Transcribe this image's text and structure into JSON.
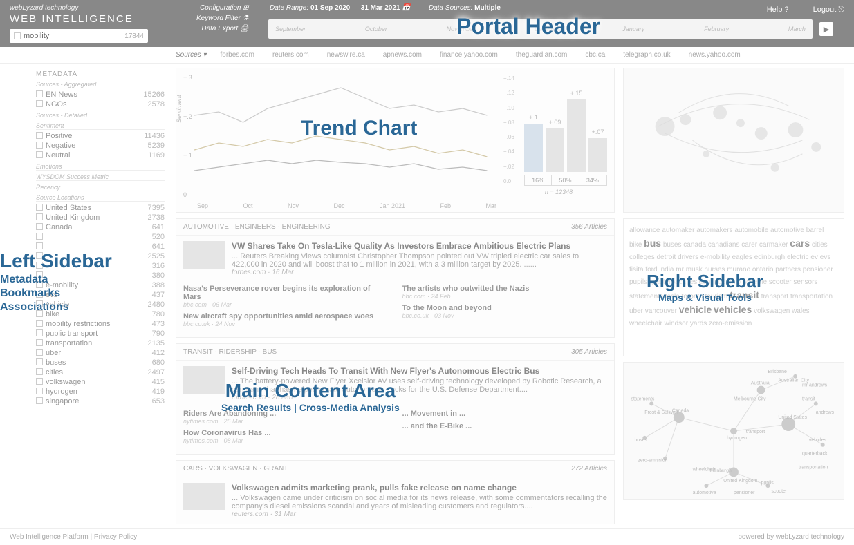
{
  "header": {
    "tagline": "webLyzard technology",
    "brand": "WEB INTELLIGENCE",
    "search_value": "mobility",
    "search_count": "17844",
    "config": "Configuration",
    "keyword_filter": "Keyword Filter",
    "data_export": "Data Export",
    "date_label": "Date Range:",
    "date_value": "01 Sep 2020 — 31 Mar 2021",
    "sources_label": "Data Sources:",
    "sources_value": "Multiple",
    "help": "Help",
    "logout": "Logout",
    "timeline_months": [
      "September",
      "October",
      "November",
      "December",
      "January",
      "February",
      "March"
    ],
    "overlay": "Portal Header"
  },
  "sources_bar": {
    "label": "Sources ▾",
    "items": [
      "forbes.com",
      "reuters.com",
      "newswire.ca",
      "apnews.com",
      "finance.yahoo.com",
      "theguardian.com",
      "cbc.ca",
      "telegraph.co.uk",
      "news.yahoo.com"
    ]
  },
  "sidebar_left": {
    "title": "METADATA",
    "sections": [
      {
        "sub": "Sources - Aggregated",
        "rows": [
          {
            "nm": "EN News",
            "ct": "15266"
          },
          {
            "nm": "NGOs",
            "ct": "2578"
          }
        ]
      },
      {
        "sub": "Sources - Detailed",
        "rows": []
      },
      {
        "sub": "Sentiment",
        "rows": [
          {
            "nm": "Positive",
            "ct": "11436"
          },
          {
            "nm": "Negative",
            "ct": "5239"
          },
          {
            "nm": "Neutral",
            "ct": "1169"
          }
        ]
      },
      {
        "sub": "Emotions",
        "rows": []
      },
      {
        "sub": "WYSDOM Success Metric",
        "rows": []
      },
      {
        "sub": "Recency",
        "rows": []
      },
      {
        "sub": "Source Locations",
        "rows": [
          {
            "nm": "United States",
            "ct": "7395"
          },
          {
            "nm": "United Kingdom",
            "ct": "2738"
          },
          {
            "nm": "Canada",
            "ct": "641"
          }
        ]
      }
    ],
    "extra_rows": [
      {
        "nm": "",
        "ct": "520"
      },
      {
        "nm": "",
        "ct": "641"
      },
      {
        "nm": "",
        "ct": "2525"
      },
      {
        "nm": "",
        "ct": "316"
      },
      {
        "nm": "",
        "ct": "380"
      },
      {
        "nm": "e-mobility",
        "ct": "388"
      },
      {
        "nm": "evs",
        "ct": "437"
      },
      {
        "nm": "vehicle",
        "ct": "2480"
      },
      {
        "nm": "bike",
        "ct": "780"
      },
      {
        "nm": "mobility restrictions",
        "ct": "473"
      },
      {
        "nm": "public transport",
        "ct": "790"
      },
      {
        "nm": "transportation",
        "ct": "2135"
      },
      {
        "nm": "uber",
        "ct": "412"
      },
      {
        "nm": "buses",
        "ct": "680"
      },
      {
        "nm": "cities",
        "ct": "2497"
      },
      {
        "nm": "volkswagen",
        "ct": "415"
      },
      {
        "nm": "hydrogen",
        "ct": "419"
      },
      {
        "nm": "singapore",
        "ct": "653"
      }
    ],
    "overlay_big": "Left Sidebar",
    "overlay_subs": [
      "Metadata",
      "Bookmarks",
      "Associations"
    ]
  },
  "trend": {
    "overlay": "Trend Chart",
    "y_ticks": [
      "+.3",
      "+.2",
      "+.1",
      "0"
    ],
    "x_ticks": [
      "Sep",
      "Oct",
      "Nov",
      "Dec",
      "Jan 2021",
      "Feb",
      "Mar"
    ],
    "sentiment_label": "Sentiment",
    "lines": [
      {
        "color": "#cccccc",
        "points": [
          [
            0,
            60
          ],
          [
            30,
            55
          ],
          [
            60,
            70
          ],
          [
            90,
            50
          ],
          [
            120,
            40
          ],
          [
            150,
            30
          ],
          [
            180,
            20
          ],
          [
            210,
            35
          ],
          [
            240,
            50
          ],
          [
            270,
            45
          ],
          [
            300,
            55
          ],
          [
            330,
            50
          ],
          [
            360,
            60
          ]
        ]
      },
      {
        "color": "#d4c9a8",
        "points": [
          [
            0,
            110
          ],
          [
            30,
            100
          ],
          [
            60,
            105
          ],
          [
            90,
            95
          ],
          [
            120,
            100
          ],
          [
            150,
            90
          ],
          [
            180,
            95
          ],
          [
            210,
            100
          ],
          [
            240,
            110
          ],
          [
            270,
            105
          ],
          [
            300,
            115
          ],
          [
            330,
            110
          ],
          [
            360,
            120
          ]
        ]
      },
      {
        "color": "#bbbbbb",
        "points": [
          [
            0,
            140
          ],
          [
            30,
            135
          ],
          [
            60,
            130
          ],
          [
            90,
            125
          ],
          [
            120,
            130
          ],
          [
            150,
            125
          ],
          [
            180,
            128
          ],
          [
            210,
            130
          ],
          [
            240,
            135
          ],
          [
            270,
            130
          ],
          [
            300,
            138
          ],
          [
            330,
            135
          ],
          [
            360,
            140
          ]
        ]
      }
    ],
    "bar_y": [
      "+.14",
      "+.12",
      "+.10",
      "+.08",
      "+.06",
      "+.04",
      "+.02",
      "0.0"
    ],
    "bars": [
      {
        "v": "+.1",
        "h": 70,
        "color": "#d8e2ec"
      },
      {
        "v": "+.09",
        "h": 63,
        "color": "#e5e5e5"
      },
      {
        "v": "+.15",
        "h": 105,
        "color": "#e5e5e5"
      },
      {
        "v": "+.07",
        "h": 49,
        "color": "#e5e5e5"
      }
    ],
    "bar_pct": [
      "16%",
      "50%",
      "34%"
    ],
    "n_label": "n = 12348"
  },
  "articles": [
    {
      "tags": "AUTOMOTIVE · ENGINEERS · ENGINEERING",
      "count": "356 Articles",
      "title": "VW Shares Take On Tesla-Like Quality As Investors Embrace Ambitious Electric Plans",
      "desc": "... Reuters Breaking Views columnist Christopher Thompson pointed out VW tripled electric car sales to 422,000 in 2020 and will boost that to 1 million in 2021, with a 3 million target by 2025. ......",
      "src": "forbes.com · 16 Mar",
      "subs": [
        [
          {
            "t": "Nasa's Perseverance rover begins its exploration of Mars",
            "s": "bbc.com · 06 Mar"
          },
          {
            "t": "New aircraft spy opportunities amid aerospace woes",
            "s": "bbc.co.uk · 24 Nov"
          }
        ],
        [
          {
            "t": "The artists who outwitted the Nazis",
            "s": "bbc.com · 24 Feb"
          },
          {
            "t": "To the Moon and beyond",
            "s": "bbc.co.uk · 03 Nov"
          }
        ]
      ]
    },
    {
      "tags": "TRANSIT · RIDERSHIP · BUS",
      "count": "305 Articles",
      "title": "Self-Driving Tech Heads To Transit With New Flyer's Autonomous Electric Bus",
      "desc": "... The battery-powered New Flyer Xcelsior AV uses self-driving technology developed by Robotic Research, a company that has helped create autonomous trucks for the U.S. Defense Department....",
      "src": "forbes.com · 28 Jan",
      "subs": [
        [
          {
            "t": "Riders Are Abandoning ...",
            "s": "nytimes.com · 25 Mar"
          },
          {
            "t": "How Coronavirus Has ...",
            "s": "nytimes.com · 08 Mar"
          }
        ],
        [
          {
            "t": "... Movement in ...",
            "s": ""
          },
          {
            "t": "... and the E-Bike ...",
            "s": ""
          }
        ]
      ]
    },
    {
      "tags": "CARS · VOLKSWAGEN · GRANT",
      "count": "272 Articles",
      "title": "Volkswagen admits marketing prank, pulls fake release on name change",
      "desc": "... Volkswagen came under criticism on social media for its news release, with some commentators recalling the company's diesel emissions scandal and years of misleading customers and regulators....",
      "src": "reuters.com · 31 Mar",
      "subs": []
    }
  ],
  "main_overlay": {
    "big": "Main Content Area",
    "sub": "Search Results | Cross-Media Analysis"
  },
  "sidebar_right": {
    "overlay_big": "Right Sidebar",
    "overlay_sub": "Maps & Visual Tools",
    "tags": [
      "allowance",
      "automaker",
      "automakers",
      "automobile",
      "automotive",
      "barrel",
      "bike",
      "bus",
      "buses",
      "canada",
      "canadians",
      "carer",
      "carmaker",
      "cars",
      "cities",
      "colleges",
      "detroit",
      "drivers",
      "e-mobility",
      "eagles",
      "edinburgh",
      "electric",
      "ev",
      "evs",
      "fisita",
      "ford",
      "india",
      "mr",
      "musk",
      "nurses",
      "murano",
      "ontario",
      "partners",
      "pensioner",
      "pupils",
      "quarterback",
      "resident",
      "ridership",
      "scheme",
      "scooter",
      "sensors",
      "statements",
      "tesla",
      "toronto",
      "tourism",
      "transit",
      "transport",
      "transportation",
      "uber",
      "vancouver",
      "vehicle",
      "vehicles",
      "volkswagen",
      "wales",
      "wheelchair",
      "windsor",
      "yards",
      "zero-emission"
    ],
    "tag_emphasis": [
      "bus",
      "transit",
      "vehicle",
      "vehicles",
      "cars"
    ],
    "graph_nodes": [
      "United States",
      "Canada",
      "United Kingdom",
      "Australia",
      "hydrogen",
      "transport",
      "wheelchair",
      "buses",
      "zero-emission",
      "statements",
      "Frost & Sullivan",
      "Melbourne City",
      "Brisbane",
      "Australian City Securities Exchange",
      "mr andrews",
      "andrews",
      "transit",
      "vehicles",
      "quarterback",
      "transportation",
      "pupils",
      "scooter",
      "pensioner",
      "Edinburgh",
      "automotive"
    ]
  },
  "footer": {
    "left": "Web Intelligence Platform | Privacy Policy",
    "right": "powered by webLyzard technology"
  }
}
